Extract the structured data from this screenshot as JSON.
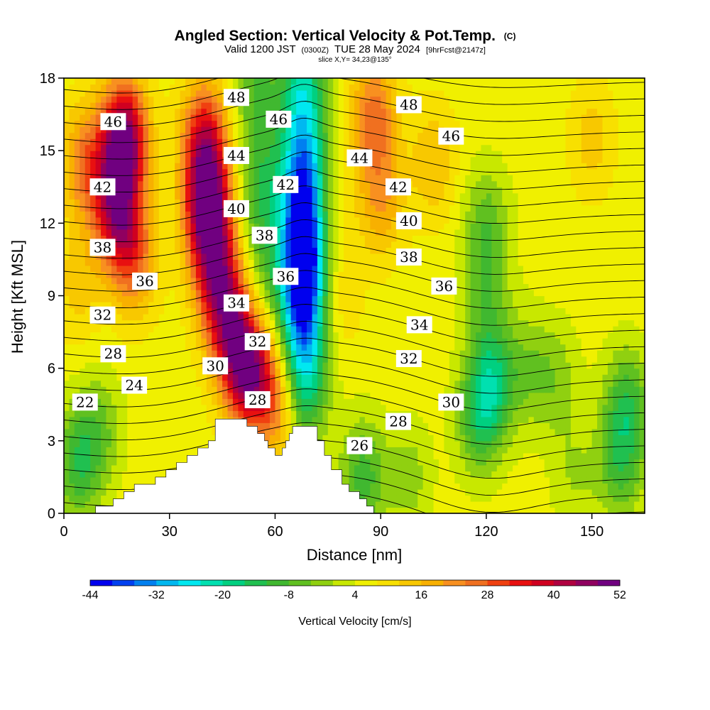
{
  "header": {
    "title": "Angled Section: Vertical Velocity & Pot.Temp.",
    "title_tag": "(C)",
    "valid_prefix": "Valid 1200 JST",
    "utc_tag": "(0300Z)",
    "valid_date": "TUE 28 May 2024",
    "fcst_tag": "[9hrFcst@2147z]",
    "slice_text": "slice X,Y= 34,23@135°"
  },
  "chart_data": {
    "type": "heatmap",
    "overlay": "contour",
    "xlabel": "Distance [nm]",
    "ylabel": "Height [Kft MSL]",
    "xlim": [
      0,
      165
    ],
    "ylim": [
      0,
      18
    ],
    "xticks": [
      0,
      30,
      60,
      90,
      120,
      150
    ],
    "yticks": [
      0,
      3,
      6,
      9,
      12,
      15,
      18
    ],
    "colorbar": {
      "label": "Vertical Velocity [cm/s]",
      "tick_labels": [
        "-44",
        "-32",
        "-20",
        "-8",
        "4",
        "16",
        "28",
        "40",
        "52"
      ],
      "levels": [
        -44,
        -40,
        -36,
        -32,
        -28,
        -24,
        -20,
        -16,
        -12,
        -8,
        -4,
        0,
        4,
        8,
        12,
        16,
        20,
        24,
        28,
        32,
        36,
        40,
        44,
        48,
        52
      ],
      "colors": [
        "#0000ee",
        "#0040f0",
        "#0080f0",
        "#00b8f0",
        "#00e8f0",
        "#00e0b0",
        "#00d080",
        "#20c050",
        "#40b830",
        "#60c020",
        "#90d010",
        "#c8e800",
        "#f0f000",
        "#f8e000",
        "#f8c800",
        "#f8b000",
        "#f89020",
        "#f07020",
        "#f04010",
        "#e81010",
        "#d00020",
        "#b00040",
        "#900060",
        "#700080"
      ]
    },
    "velocity_field": {
      "background_cm_s": 6,
      "features": [
        {
          "x": 17,
          "y": 15.5,
          "value": 50
        },
        {
          "x": 15,
          "y": 12.5,
          "value": 38
        },
        {
          "x": 20,
          "y": 10.5,
          "value": 24
        },
        {
          "x": 41,
          "y": 12.5,
          "value": 52
        },
        {
          "x": 40,
          "y": 15.5,
          "value": 36
        },
        {
          "x": 44,
          "y": 9.5,
          "value": 38
        },
        {
          "x": 49,
          "y": 7.0,
          "value": 40
        },
        {
          "x": 54,
          "y": 5.5,
          "value": 36
        },
        {
          "x": 62,
          "y": 4.5,
          "value": 22
        },
        {
          "x": 6,
          "y": 14.5,
          "value": 24
        },
        {
          "x": 4,
          "y": 9.5,
          "value": 14
        },
        {
          "x": 56,
          "y": 13.5,
          "value": -10
        },
        {
          "x": 55,
          "y": 17.5,
          "value": -8
        },
        {
          "x": 57,
          "y": 10.0,
          "value": -4
        },
        {
          "x": 68,
          "y": 17.5,
          "value": -20
        },
        {
          "x": 68,
          "y": 14.0,
          "value": -30
        },
        {
          "x": 68,
          "y": 11.0,
          "value": -38
        },
        {
          "x": 68,
          "y": 8.5,
          "value": -26
        },
        {
          "x": 68,
          "y": 6.0,
          "value": -12
        },
        {
          "x": 68,
          "y": 4.5,
          "value": -6
        },
        {
          "x": 88,
          "y": 16.5,
          "value": 26
        },
        {
          "x": 90,
          "y": 13.0,
          "value": 20
        },
        {
          "x": 78,
          "y": 9.0,
          "value": 12
        },
        {
          "x": 75,
          "y": 12.5,
          "value": 10
        },
        {
          "x": 105,
          "y": 14.5,
          "value": 16
        },
        {
          "x": 120,
          "y": 12.0,
          "value": -6
        },
        {
          "x": 120,
          "y": 9.0,
          "value": -4
        },
        {
          "x": 122,
          "y": 5.5,
          "value": -12
        },
        {
          "x": 118,
          "y": 4.0,
          "value": -10
        },
        {
          "x": 132,
          "y": 6.0,
          "value": -2
        },
        {
          "x": 160,
          "y": 4.5,
          "value": -10
        },
        {
          "x": 158,
          "y": 2.0,
          "value": -8
        },
        {
          "x": 4,
          "y": 2.0,
          "value": -10
        },
        {
          "x": 10,
          "y": 3.5,
          "value": -4
        },
        {
          "x": 85,
          "y": 1.5,
          "value": -10
        },
        {
          "x": 98,
          "y": 1.5,
          "value": -2
        },
        {
          "x": 145,
          "y": 1.5,
          "value": 0
        },
        {
          "x": 150,
          "y": 15.5,
          "value": 14
        },
        {
          "x": 140,
          "y": 5.5,
          "value": -2
        }
      ]
    },
    "terrain_profile": [
      {
        "x": 0,
        "h": 0.0
      },
      {
        "x": 9,
        "h": 0.0
      },
      {
        "x": 9,
        "h": 0.3
      },
      {
        "x": 14,
        "h": 0.3
      },
      {
        "x": 14,
        "h": 0.6
      },
      {
        "x": 17,
        "h": 0.6
      },
      {
        "x": 17,
        "h": 0.9
      },
      {
        "x": 20,
        "h": 0.9
      },
      {
        "x": 20,
        "h": 1.2
      },
      {
        "x": 26,
        "h": 1.2
      },
      {
        "x": 26,
        "h": 1.5
      },
      {
        "x": 29,
        "h": 1.5
      },
      {
        "x": 29,
        "h": 1.8
      },
      {
        "x": 32,
        "h": 1.8
      },
      {
        "x": 32,
        "h": 2.1
      },
      {
        "x": 35,
        "h": 2.1
      },
      {
        "x": 35,
        "h": 2.4
      },
      {
        "x": 38,
        "h": 2.4
      },
      {
        "x": 38,
        "h": 2.7
      },
      {
        "x": 41,
        "h": 2.7
      },
      {
        "x": 41,
        "h": 3.0
      },
      {
        "x": 43,
        "h": 3.0
      },
      {
        "x": 43,
        "h": 3.3
      },
      {
        "x": 43,
        "h": 3.9
      },
      {
        "x": 52,
        "h": 3.9
      },
      {
        "x": 52,
        "h": 3.6
      },
      {
        "x": 55,
        "h": 3.6
      },
      {
        "x": 55,
        "h": 3.3
      },
      {
        "x": 57,
        "h": 3.3
      },
      {
        "x": 57,
        "h": 3.0
      },
      {
        "x": 58,
        "h": 3.0
      },
      {
        "x": 58,
        "h": 2.7
      },
      {
        "x": 60,
        "h": 2.7
      },
      {
        "x": 60,
        "h": 2.4
      },
      {
        "x": 62,
        "h": 2.4
      },
      {
        "x": 62,
        "h": 2.7
      },
      {
        "x": 63,
        "h": 2.7
      },
      {
        "x": 63,
        "h": 3.0
      },
      {
        "x": 64,
        "h": 3.0
      },
      {
        "x": 64,
        "h": 3.3
      },
      {
        "x": 65,
        "h": 3.3
      },
      {
        "x": 65,
        "h": 3.6
      },
      {
        "x": 72,
        "h": 3.6
      },
      {
        "x": 72,
        "h": 3.0
      },
      {
        "x": 74,
        "h": 3.0
      },
      {
        "x": 74,
        "h": 2.4
      },
      {
        "x": 76,
        "h": 2.4
      },
      {
        "x": 76,
        "h": 1.8
      },
      {
        "x": 79,
        "h": 1.8
      },
      {
        "x": 79,
        "h": 1.2
      },
      {
        "x": 81,
        "h": 1.2
      },
      {
        "x": 81,
        "h": 0.9
      },
      {
        "x": 84,
        "h": 0.9
      },
      {
        "x": 84,
        "h": 0.6
      },
      {
        "x": 86,
        "h": 0.6
      },
      {
        "x": 86,
        "h": 0.3
      },
      {
        "x": 88,
        "h": 0.3
      },
      {
        "x": 88,
        "h": 0.0
      },
      {
        "x": 165,
        "h": 0.0
      }
    ],
    "theta_contours": {
      "levels_c": [
        20,
        21,
        22,
        23,
        24,
        25,
        26,
        27,
        28,
        29,
        30,
        31,
        32,
        33,
        34,
        35,
        36,
        37,
        38,
        39,
        40,
        41,
        42,
        43,
        44,
        45,
        46,
        47,
        48,
        49,
        50
      ],
      "labels": [
        {
          "text": "48",
          "x": 49,
          "y": 17.2
        },
        {
          "text": "46",
          "x": 14,
          "y": 16.2
        },
        {
          "text": "46",
          "x": 61,
          "y": 16.3
        },
        {
          "text": "48",
          "x": 98,
          "y": 16.9
        },
        {
          "text": "46",
          "x": 110,
          "y": 15.6
        },
        {
          "text": "44",
          "x": 49,
          "y": 14.8
        },
        {
          "text": "44",
          "x": 84,
          "y": 14.7
        },
        {
          "text": "42",
          "x": 11,
          "y": 13.5
        },
        {
          "text": "42",
          "x": 63,
          "y": 13.6
        },
        {
          "text": "42",
          "x": 95,
          "y": 13.5
        },
        {
          "text": "40",
          "x": 49,
          "y": 12.6
        },
        {
          "text": "40",
          "x": 98,
          "y": 12.1
        },
        {
          "text": "38",
          "x": 11,
          "y": 11.0
        },
        {
          "text": "38",
          "x": 57,
          "y": 11.5
        },
        {
          "text": "38",
          "x": 98,
          "y": 10.6
        },
        {
          "text": "36",
          "x": 23,
          "y": 9.6
        },
        {
          "text": "36",
          "x": 63,
          "y": 9.8
        },
        {
          "text": "36",
          "x": 108,
          "y": 9.4
        },
        {
          "text": "34",
          "x": 49,
          "y": 8.7
        },
        {
          "text": "34",
          "x": 101,
          "y": 7.8
        },
        {
          "text": "32",
          "x": 11,
          "y": 8.2
        },
        {
          "text": "32",
          "x": 55,
          "y": 7.1
        },
        {
          "text": "32",
          "x": 98,
          "y": 6.4
        },
        {
          "text": "30",
          "x": 43,
          "y": 6.1
        },
        {
          "text": "30",
          "x": 110,
          "y": 4.6
        },
        {
          "text": "28",
          "x": 14,
          "y": 6.6
        },
        {
          "text": "28",
          "x": 55,
          "y": 4.7
        },
        {
          "text": "28",
          "x": 95,
          "y": 3.8
        },
        {
          "text": "26",
          "x": 84,
          "y": 2.8
        },
        {
          "text": "24",
          "x": 20,
          "y": 5.3
        },
        {
          "text": "22",
          "x": 6,
          "y": 4.6
        }
      ]
    }
  }
}
